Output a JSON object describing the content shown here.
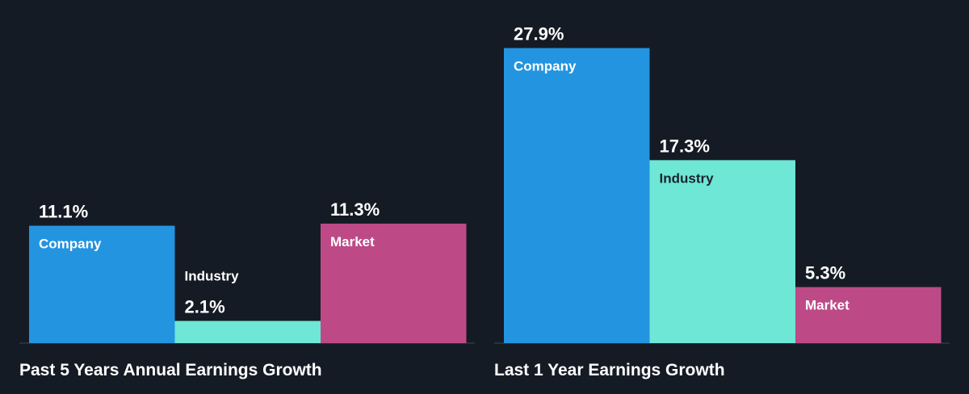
{
  "chart_data": [
    {
      "type": "bar",
      "title": "Past 5 Years Annual Earnings Growth",
      "categories": [
        "Company",
        "Industry",
        "Market"
      ],
      "values": [
        11.1,
        2.1,
        11.3
      ],
      "value_labels": [
        "11.1%",
        "2.1%",
        "11.3%"
      ],
      "unit": "%",
      "ylim": [
        0,
        30
      ],
      "grid": false
    },
    {
      "type": "bar",
      "title": "Last 1 Year Earnings Growth",
      "categories": [
        "Company",
        "Industry",
        "Market"
      ],
      "values": [
        27.9,
        17.3,
        5.3
      ],
      "value_labels": [
        "27.9%",
        "17.3%",
        "5.3%"
      ],
      "unit": "%",
      "ylim": [
        0,
        30
      ],
      "grid": false
    }
  ],
  "colors": {
    "background": "#151b24",
    "Company": "#2394e0",
    "Industry": "#6ee7d6",
    "Market": "#bd4a87"
  }
}
